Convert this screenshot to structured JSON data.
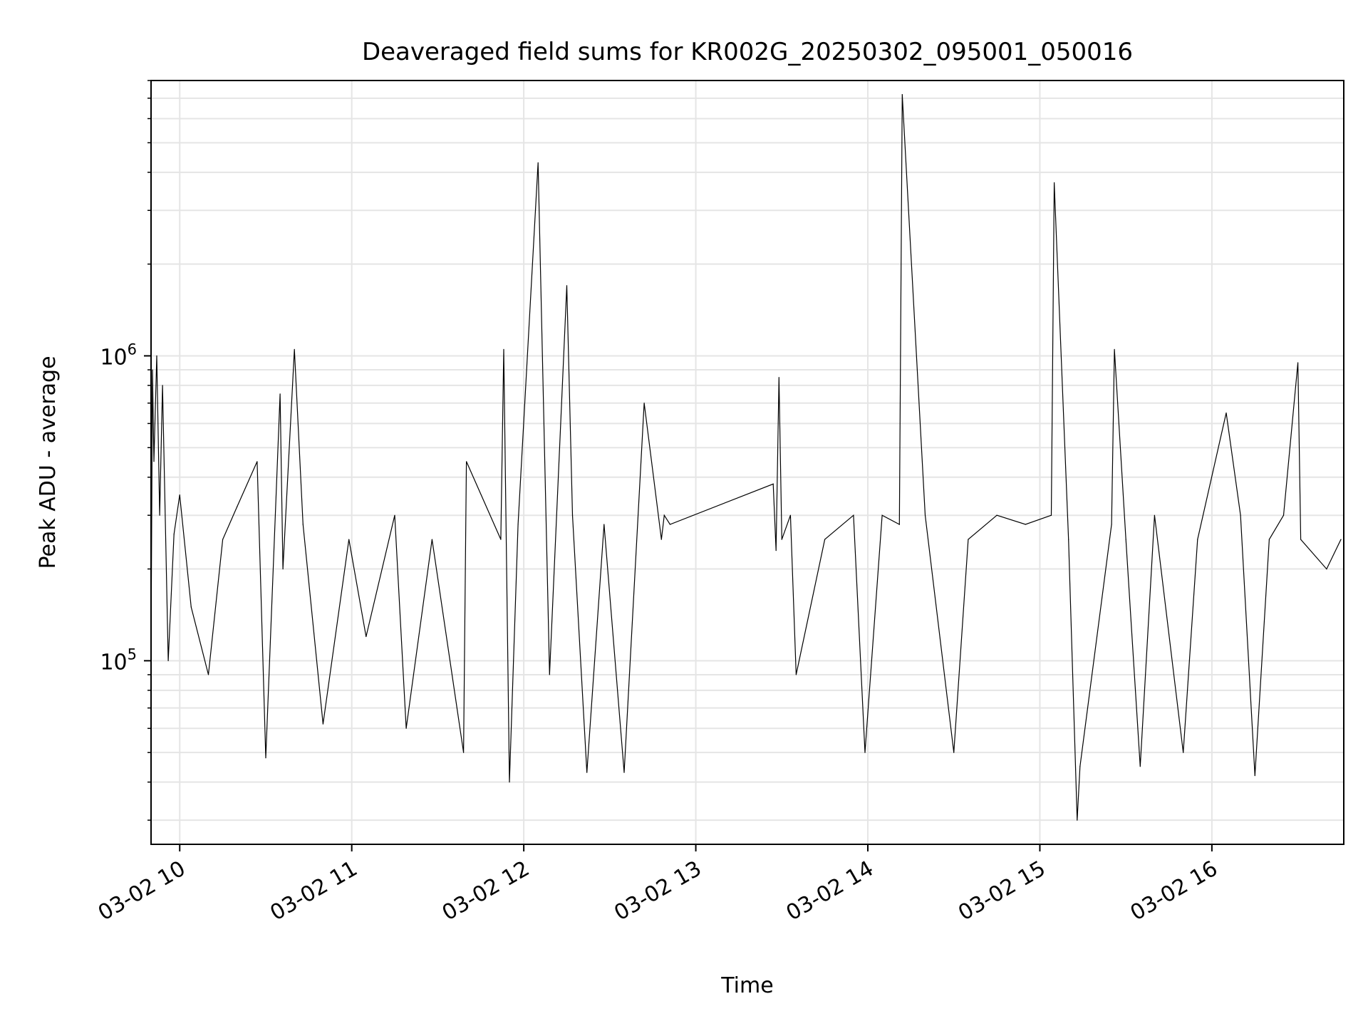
{
  "chart_data": {
    "type": "line",
    "title": "Deaveraged field sums for KR002G_20250302_095001_050016",
    "xlabel": "Time",
    "ylabel": "Peak ADU - average",
    "y_scale": "log",
    "ylim": [
      25000,
      8000000
    ],
    "xlim": [
      "2025-03-02T09:50:00",
      "2025-03-02T16:46:00"
    ],
    "x_ticks": [
      "03-02 10",
      "03-02 11",
      "03-02 12",
      "03-02 13",
      "03-02 14",
      "03-02 15",
      "03-02 16"
    ],
    "y_ticks": [
      {
        "value": 100000,
        "base": "10",
        "exp": "5"
      },
      {
        "value": 1000000,
        "base": "10",
        "exp": "6"
      }
    ],
    "grid": true,
    "line_color": "#000000",
    "grid_color": "#e5e5e5",
    "series": [
      {
        "x": [
          "2025-03-02T09:50:00",
          "2025-03-02T09:50:30",
          "2025-03-02T09:51:00",
          "2025-03-02T09:52:00",
          "2025-03-02T09:53:00",
          "2025-03-02T09:54:00",
          "2025-03-02T09:56:00",
          "2025-03-02T09:58:00",
          "2025-03-02T10:00:00",
          "2025-03-02T10:04:00",
          "2025-03-02T10:10:00",
          "2025-03-02T10:15:00",
          "2025-03-02T10:20:00",
          "2025-03-02T10:27:00",
          "2025-03-02T10:30:00",
          "2025-03-02T10:35:00",
          "2025-03-02T10:36:00",
          "2025-03-02T10:40:00",
          "2025-03-02T10:43:00",
          "2025-03-02T10:50:00",
          "2025-03-02T10:59:00",
          "2025-03-02T11:05:00",
          "2025-03-02T11:15:00",
          "2025-03-02T11:19:00",
          "2025-03-02T11:28:00",
          "2025-03-02T11:39:00",
          "2025-03-02T11:40:00",
          "2025-03-02T11:52:00",
          "2025-03-02T11:53:00",
          "2025-03-02T11:55:00",
          "2025-03-02T11:58:00",
          "2025-03-02T12:05:00",
          "2025-03-02T12:09:00",
          "2025-03-02T12:15:00",
          "2025-03-02T12:17:00",
          "2025-03-02T12:22:00",
          "2025-03-02T12:28:00",
          "2025-03-02T12:35:00",
          "2025-03-02T12:42:00",
          "2025-03-02T12:48:00",
          "2025-03-02T12:49:00",
          "2025-03-02T12:51:00",
          "2025-03-02T13:27:00",
          "2025-03-02T13:28:00",
          "2025-03-02T13:29:00",
          "2025-03-02T13:30:00",
          "2025-03-02T13:33:00",
          "2025-03-02T13:35:00",
          "2025-03-02T13:45:00",
          "2025-03-02T13:55:00",
          "2025-03-02T13:59:00",
          "2025-03-02T14:05:00",
          "2025-03-02T14:11:00",
          "2025-03-02T14:12:00",
          "2025-03-02T14:20:00",
          "2025-03-02T14:30:00",
          "2025-03-02T14:35:00",
          "2025-03-02T14:45:00",
          "2025-03-02T14:55:00",
          "2025-03-02T15:04:00",
          "2025-03-02T15:05:00",
          "2025-03-02T15:10:00",
          "2025-03-02T15:13:00",
          "2025-03-02T15:14:00",
          "2025-03-02T15:25:00",
          "2025-03-02T15:26:00",
          "2025-03-02T15:30:00",
          "2025-03-02T15:35:00",
          "2025-03-02T15:40:00",
          "2025-03-02T15:50:00",
          "2025-03-02T15:55:00",
          "2025-03-02T16:05:00",
          "2025-03-02T16:10:00",
          "2025-03-02T16:15:00",
          "2025-03-02T16:20:00",
          "2025-03-02T16:25:00",
          "2025-03-02T16:30:00",
          "2025-03-02T16:31:00",
          "2025-03-02T16:40:00",
          "2025-03-02T16:45:00"
        ],
        "y": [
          110000,
          900000,
          450000,
          1000000,
          300000,
          800000,
          100000,
          260000,
          350000,
          150000,
          90000,
          250000,
          320000,
          450000,
          48000,
          750000,
          200000,
          1050000,
          280000,
          62000,
          250000,
          120000,
          300000,
          60000,
          250000,
          50000,
          450000,
          250000,
          1050000,
          40000,
          280000,
          4300000,
          90000,
          1700000,
          300000,
          43000,
          280000,
          43000,
          700000,
          250000,
          300000,
          280000,
          380000,
          230000,
          850000,
          250000,
          300000,
          90000,
          250000,
          300000,
          50000,
          300000,
          280000,
          7200000,
          300000,
          50000,
          250000,
          300000,
          280000,
          300000,
          3700000,
          250000,
          30000,
          45000,
          280000,
          1050000,
          250000,
          45000,
          300000,
          50000,
          250000,
          650000,
          300000,
          42000,
          250000,
          300000,
          950000,
          250000,
          200000,
          250000
        ]
      }
    ]
  }
}
